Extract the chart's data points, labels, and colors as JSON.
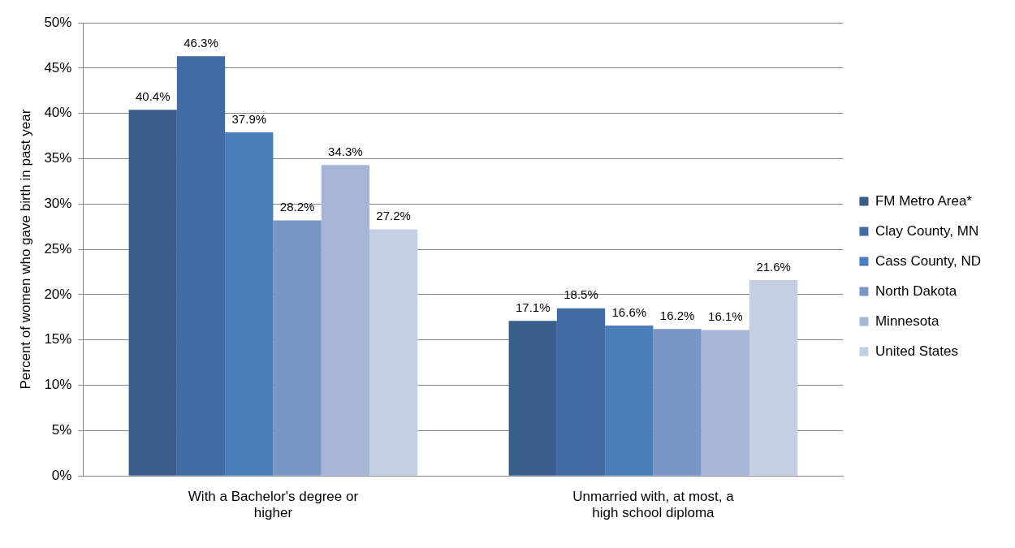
{
  "chart_data": {
    "type": "bar",
    "ylabel": "Percent of women who gave birth in past year",
    "categories": [
      "With a Bachelor's degree or higher",
      "Unmarried with, at most, a high school diploma"
    ],
    "series": [
      {
        "name": "FM Metro Area*",
        "color": "#3a5e8c",
        "values": [
          40.4,
          17.1
        ],
        "value_labels": [
          "40.4%",
          "17.1%"
        ]
      },
      {
        "name": "Clay County, MN",
        "color": "#416ba2",
        "values": [
          46.3,
          18.5
        ],
        "value_labels": [
          "46.3%",
          "18.5%"
        ]
      },
      {
        "name": "Cass County, ND",
        "color": "#4a7ebb",
        "values": [
          37.9,
          16.6
        ],
        "value_labels": [
          "37.9%",
          "16.6%"
        ]
      },
      {
        "name": "North Dakota",
        "color": "#7896c6",
        "values": [
          28.2,
          16.2
        ],
        "value_labels": [
          "28.2%",
          "16.2%"
        ]
      },
      {
        "name": "Minnesota",
        "color": "#a5b6d6",
        "values": [
          34.3,
          16.1
        ],
        "value_labels": [
          "34.3%",
          "16.1%"
        ]
      },
      {
        "name": "United States",
        "color": "#c5cfe3",
        "values": [
          27.2,
          21.6
        ],
        "value_labels": [
          "27.2%",
          "21.6%"
        ]
      }
    ],
    "ylim": [
      0,
      50
    ],
    "yticks": [
      {
        "value": 0,
        "label": "0%"
      },
      {
        "value": 5,
        "label": "5%"
      },
      {
        "value": 10,
        "label": "10%"
      },
      {
        "value": 15,
        "label": "15%"
      },
      {
        "value": 20,
        "label": "20%"
      },
      {
        "value": 25,
        "label": "25%"
      },
      {
        "value": 30,
        "label": "30%"
      },
      {
        "value": 35,
        "label": "35%"
      },
      {
        "value": 40,
        "label": "40%"
      },
      {
        "value": 45,
        "label": "45%"
      },
      {
        "value": 50,
        "label": "50%"
      }
    ],
    "grid": "y",
    "legend": "right"
  }
}
